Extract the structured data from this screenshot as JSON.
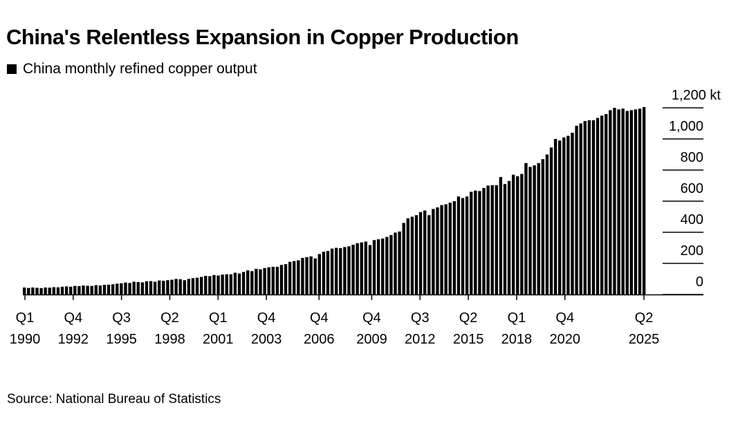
{
  "title": "China's Relentless Expansion in Copper Production",
  "source": "Source: National Bureau of Statistics",
  "chart_data": {
    "type": "bar",
    "title": "China's Relentless Expansion in Copper Production",
    "series": [
      {
        "name": "China monthly refined copper output",
        "color": "#000000"
      }
    ],
    "unit": "kt",
    "ylim": [
      0,
      1200
    ],
    "y_ticks": [
      {
        "value": 0,
        "label": "0"
      },
      {
        "value": 200,
        "label": "200"
      },
      {
        "value": 400,
        "label": "400"
      },
      {
        "value": 600,
        "label": "600"
      },
      {
        "value": 800,
        "label": "800"
      },
      {
        "value": 1000,
        "label": "1,000"
      },
      {
        "value": 1200,
        "label": "1,200 kt"
      }
    ],
    "x_ticks": [
      {
        "quarter": "Q1",
        "year": "1990"
      },
      {
        "quarter": "Q4",
        "year": "1992"
      },
      {
        "quarter": "Q3",
        "year": "1995"
      },
      {
        "quarter": "Q2",
        "year": "1998"
      },
      {
        "quarter": "Q1",
        "year": "2001"
      },
      {
        "quarter": "Q4",
        "year": "2003"
      },
      {
        "quarter": "Q4",
        "year": "2006"
      },
      {
        "quarter": "Q4",
        "year": "2009"
      },
      {
        "quarter": "Q3",
        "year": "2012"
      },
      {
        "quarter": "Q2",
        "year": "2015"
      },
      {
        "quarter": "Q1",
        "year": "2018"
      },
      {
        "quarter": "Q4",
        "year": "2020"
      },
      {
        "quarter": "Q2",
        "year": "2025"
      }
    ],
    "grid": true,
    "legend_position": "top-left",
    "values": [
      45,
      42,
      45,
      43,
      41,
      45,
      44,
      47,
      46,
      50,
      52,
      50,
      55,
      54,
      58,
      56,
      55,
      60,
      58,
      62,
      63,
      66,
      70,
      72,
      77,
      74,
      82,
      80,
      78,
      85,
      86,
      82,
      90,
      88,
      92,
      95,
      100,
      98,
      92,
      100,
      105,
      108,
      113,
      120,
      118,
      125,
      122,
      128,
      130,
      130,
      140,
      135,
      145,
      155,
      150,
      165,
      162,
      170,
      175,
      178,
      178,
      190,
      195,
      210,
      215,
      220,
      235,
      240,
      245,
      232,
      260,
      275,
      280,
      295,
      300,
      298,
      305,
      310,
      320,
      330,
      335,
      340,
      318,
      350,
      355,
      360,
      370,
      382,
      398,
      405,
      460,
      490,
      500,
      510,
      530,
      540,
      510,
      550,
      560,
      575,
      580,
      590,
      600,
      630,
      620,
      630,
      660,
      668,
      665,
      685,
      700,
      703,
      703,
      755,
      710,
      730,
      770,
      760,
      775,
      845,
      820,
      830,
      845,
      870,
      900,
      945,
      1000,
      990,
      1010,
      1020,
      1040,
      1085,
      1100,
      1115,
      1120,
      1120,
      1135,
      1150,
      1160,
      1185,
      1200,
      1190,
      1195,
      1180,
      1185,
      1190,
      1195,
      1205
    ]
  }
}
